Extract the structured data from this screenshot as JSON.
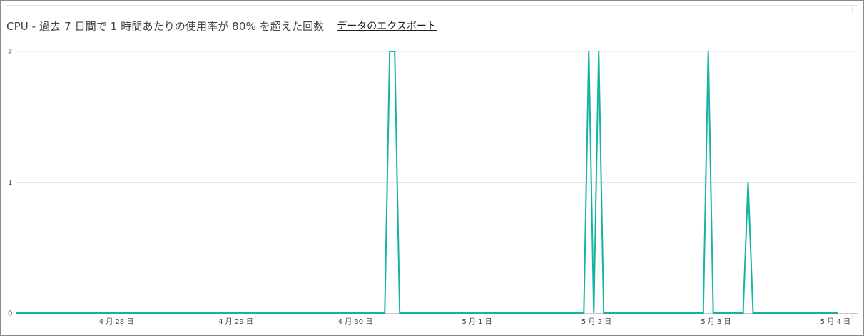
{
  "panel": {
    "title": "CPU - 過去 7 日間で 1 時間あたりの使用率が 80% を超えた回数",
    "export_label": "データのエクスポート"
  },
  "colors": {
    "series": "#16b3a3",
    "gridline": "#e8e8e8",
    "axis_line": "#c8c8c8",
    "tick_text": "#444444"
  },
  "chart_data": {
    "type": "line",
    "title": "CPU - 過去 7 日間で 1 時間あたりの使用率が 80% を超えた回数",
    "xlabel": "",
    "ylabel": "",
    "x_unit": "hours",
    "xlim": [
      -10,
      159
    ],
    "ylim": [
      0,
      2
    ],
    "yticks": [
      {
        "value": 0,
        "label": "0"
      },
      {
        "value": 1,
        "label": "1"
      },
      {
        "value": 2,
        "label": "2"
      }
    ],
    "xticks": [
      {
        "value": 14,
        "label": "4 月 28 日"
      },
      {
        "value": 38,
        "label": "4 月 29 日"
      },
      {
        "value": 62,
        "label": "4 月 30 日"
      },
      {
        "value": 86,
        "label": "5 月 1 日"
      },
      {
        "value": 110,
        "label": "5 月 2 日"
      },
      {
        "value": 134,
        "label": "5 月 3 日"
      },
      {
        "value": 158,
        "label": "5 月 4 日"
      }
    ],
    "grid": true,
    "legend": "none",
    "series": [
      {
        "points": [
          [
            -10,
            0
          ],
          [
            64,
            0
          ],
          [
            65,
            2
          ],
          [
            66,
            2
          ],
          [
            67,
            0
          ],
          [
            104,
            0
          ],
          [
            105,
            2
          ],
          [
            106,
            0
          ],
          [
            107,
            2
          ],
          [
            108,
            0
          ],
          [
            128,
            0
          ],
          [
            129,
            2
          ],
          [
            130,
            0
          ],
          [
            136,
            0
          ],
          [
            137,
            1
          ],
          [
            138,
            0
          ],
          [
            155,
            0
          ]
        ]
      }
    ]
  }
}
